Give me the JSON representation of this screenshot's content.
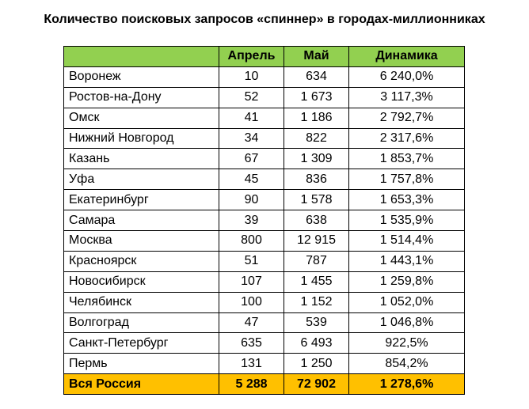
{
  "title": "Количество поисковых запросов «спиннер» в городах-миллионниках",
  "table": {
    "header": [
      "",
      "Апрель",
      "Май",
      "Динамика"
    ],
    "rows": [
      [
        "Воронеж",
        "10",
        "634",
        "6 240,0%"
      ],
      [
        "Ростов-на-Дону",
        "52",
        "1 673",
        "3 117,3%"
      ],
      [
        "Омск",
        "41",
        "1 186",
        "2 792,7%"
      ],
      [
        "Нижний Новгород",
        "34",
        "822",
        "2 317,6%"
      ],
      [
        "Казань",
        "67",
        "1 309",
        "1 853,7%"
      ],
      [
        "Уфа",
        "45",
        "836",
        "1 757,8%"
      ],
      [
        "Екатеринбург",
        "90",
        "1 578",
        "1 653,3%"
      ],
      [
        "Самара",
        "39",
        "638",
        "1 535,9%"
      ],
      [
        "Москва",
        "800",
        "12 915",
        "1 514,4%"
      ],
      [
        "Красноярск",
        "51",
        "787",
        "1 443,1%"
      ],
      [
        "Новосибирск",
        "107",
        "1 455",
        "1 259,8%"
      ],
      [
        "Челябинск",
        "100",
        "1 152",
        "1 052,0%"
      ],
      [
        "Волгоград",
        "47",
        "539",
        "1 046,8%"
      ],
      [
        "Санкт-Петербург",
        "635",
        "6 493",
        "922,5%"
      ],
      [
        "Пермь",
        "131",
        "1 250",
        "854,2%"
      ]
    ],
    "total": [
      "Вся Россия",
      "5 288",
      "72 902",
      "1 278,6%"
    ]
  }
}
